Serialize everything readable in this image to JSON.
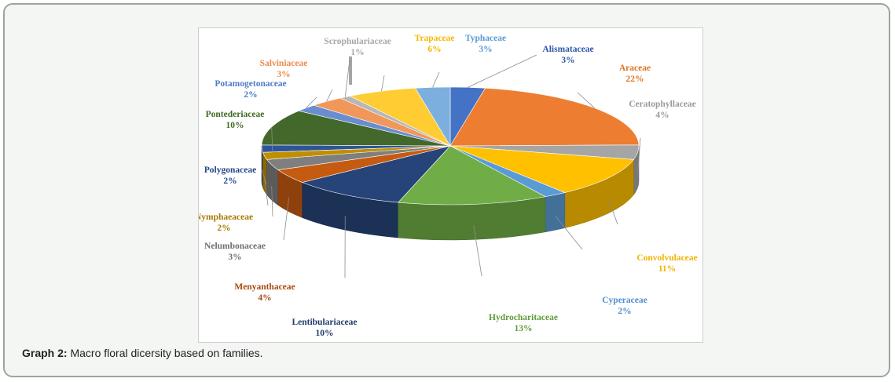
{
  "caption": {
    "prefix": "Graph 2:",
    "text": " Macro floral dicersity based on families."
  },
  "chart_data": {
    "type": "pie",
    "title": "",
    "three_d": true,
    "slices": [
      {
        "name": "Alismataceae",
        "value": 3,
        "label": "3%",
        "color": "#4472c4",
        "text_color": "#2e56a8"
      },
      {
        "name": "Araceae",
        "value": 22,
        "label": "22%",
        "color": "#ed7d31",
        "text_color": "#e0731f"
      },
      {
        "name": "Ceratophyllaceae",
        "value": 4,
        "label": "4%",
        "color": "#a5a5a5",
        "text_color": "#9a9a9a"
      },
      {
        "name": "Convolvulaceae",
        "value": 11,
        "label": "11%",
        "color": "#ffc000",
        "text_color": "#f0b400"
      },
      {
        "name": "Cyperaceae",
        "value": 2,
        "label": "2%",
        "color": "#5b9bd5",
        "text_color": "#4f8fcc"
      },
      {
        "name": "Hydrocharitaceae",
        "value": 13,
        "label": "13%",
        "color": "#70ad47",
        "text_color": "#5f9c3a"
      },
      {
        "name": "Lentibulariaceae",
        "value": 10,
        "label": "10%",
        "color": "#264478",
        "text_color": "#1f3a6a"
      },
      {
        "name": "Menyanthaceae",
        "value": 4,
        "label": "4%",
        "color": "#c55a11",
        "text_color": "#a84a0c"
      },
      {
        "name": "Nelumbonaceae",
        "value": 3,
        "label": "3%",
        "color": "#7f7f7f",
        "text_color": "#6f6f6f"
      },
      {
        "name": "Nymphaeaceae",
        "value": 2,
        "label": "2%",
        "color": "#bf8f00",
        "text_color": "#a67c00"
      },
      {
        "name": "Polygonaceae",
        "value": 2,
        "label": "2%",
        "color": "#2f5597",
        "text_color": "#23478a"
      },
      {
        "name": "Pontederiaceae",
        "value": 10,
        "label": "10%",
        "color": "#43682b",
        "text_color": "#3d6a22"
      },
      {
        "name": "Potamogetonaceae",
        "value": 2,
        "label": "2%",
        "color": "#698ed0",
        "text_color": "#4f7ac6"
      },
      {
        "name": "Salviniaceae",
        "value": 3,
        "label": "3%",
        "color": "#f1975a",
        "text_color": "#ec8a4a"
      },
      {
        "name": "Scrophulariaceae",
        "value": 1,
        "label": "1%",
        "color": "#b7b7b7",
        "text_color": "#a8a8a8"
      },
      {
        "name": "Trapaceae",
        "value": 6,
        "label": "6%",
        "color": "#ffcd33",
        "text_color": "#f5b800"
      },
      {
        "name": "Typhaceae",
        "value": 3,
        "label": "3%",
        "color": "#7cafdd",
        "text_color": "#5a9bd5"
      }
    ]
  }
}
